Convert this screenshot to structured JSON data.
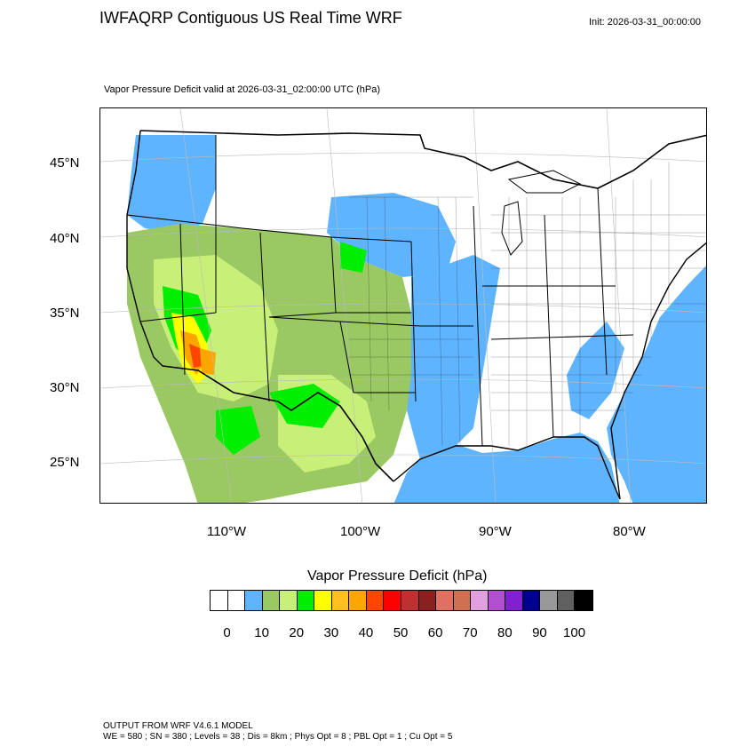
{
  "header": {
    "title": "IWFAQRP Contiguous US Real Time WRF",
    "init": "Init: 2026-03-31_00:00:00",
    "subtitle": "Vapor Pressure Deficit valid at 2026-03-31_02:00:00 UTC   (hPa)"
  },
  "map": {
    "lat_labels": [
      "45°N",
      "40°N",
      "35°N",
      "30°N",
      "25°N"
    ],
    "lon_labels": [
      "110°W",
      "100°W",
      "90°W",
      "80°W"
    ],
    "colors": {
      "ocean": "#5fb4ff",
      "low_vpd_blue": "#5fb4ff",
      "olive": "#9ac862",
      "light_green": "#c8f078",
      "bright_green": "#00ee00",
      "yellow": "#ffff00",
      "orange": "#ffa500",
      "red_orange": "#ff4500",
      "land_white": "#ffffff",
      "borders": "#000000"
    }
  },
  "colorbar": {
    "title": "Vapor Pressure Deficit  (hPa)",
    "colors": [
      "#ffffff",
      "#ffffff",
      "#5fb4ff",
      "#9ac862",
      "#c8f078",
      "#00ee00",
      "#ffff00",
      "#ffc020",
      "#ffa500",
      "#ff4500",
      "#ff0000",
      "#c03030",
      "#8b2020",
      "#e07060",
      "#d07050",
      "#e0a0e0",
      "#b050d0",
      "#8020d0",
      "#000090",
      "#999999",
      "#606060",
      "#000000"
    ],
    "labels": [
      "0",
      "10",
      "20",
      "30",
      "40",
      "50",
      "60",
      "70",
      "80",
      "90",
      "100"
    ]
  },
  "footer": {
    "line1": "OUTPUT FROM WRF V4.6.1 MODEL",
    "line2": "WE = 580 ; SN = 380 ; Levels = 38 ; Dis = 8km ; Phys Opt = 8 ; PBL Opt = 1 ; Cu Opt = 5"
  }
}
